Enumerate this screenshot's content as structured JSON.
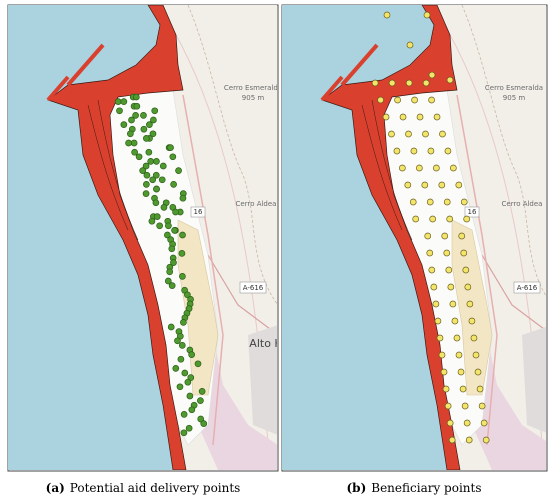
{
  "panels": [
    {
      "caption_label": "(a)",
      "caption": "Potential aid delivery points",
      "map_labels": [
        "Cerro Esmeralda",
        "905 m",
        "Cerro Aldea",
        "16",
        "A-616",
        "Alto H"
      ]
    },
    {
      "caption_label": "(b)",
      "caption": "Beneficiary points",
      "map_labels": [
        "Cerro Esmeralda",
        "905 m",
        "Cerro Aldea",
        "16",
        "A-616"
      ]
    }
  ]
}
